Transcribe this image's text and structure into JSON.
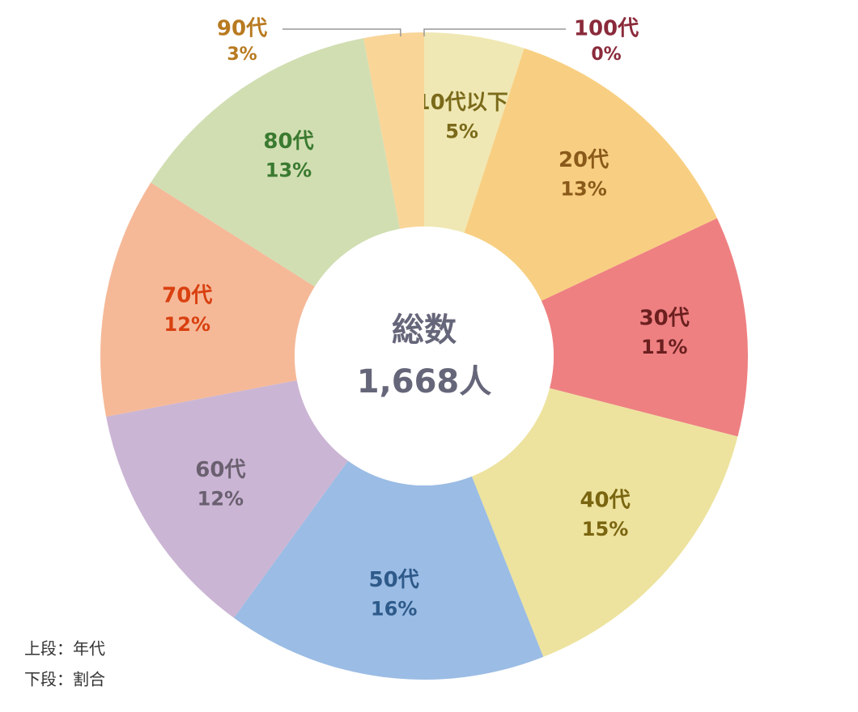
{
  "chart_data": {
    "type": "donut",
    "categories": [
      "10代以下",
      "20代",
      "30代",
      "40代",
      "50代",
      "60代",
      "70代",
      "80代",
      "90代",
      "100代"
    ],
    "values": [
      5,
      13,
      11,
      15,
      16,
      12,
      12,
      13,
      3,
      0
    ],
    "value_labels": [
      "5%",
      "13%",
      "11%",
      "15%",
      "16%",
      "12%",
      "12%",
      "13%",
      "3%",
      "0%"
    ],
    "colors": [
      "#f0e8b4",
      "#f8cf82",
      "#ee8082",
      "#ede39e",
      "#9bbce4",
      "#cbb5d4",
      "#f5b998",
      "#d1deb2",
      "#f9d598",
      "#e8a0a0"
    ],
    "label_colors": [
      "#7a6a1a",
      "#8a5a1a",
      "#6b1f1f",
      "#7a6510",
      "#2d5a8a",
      "#6a6070",
      "#d94010",
      "#3a7a30",
      "#b87a20",
      "#8a2a3a"
    ],
    "center_title": "総数",
    "center_value": "1,668人",
    "notes": [
      "上段：年代",
      "下段：割合"
    ]
  }
}
